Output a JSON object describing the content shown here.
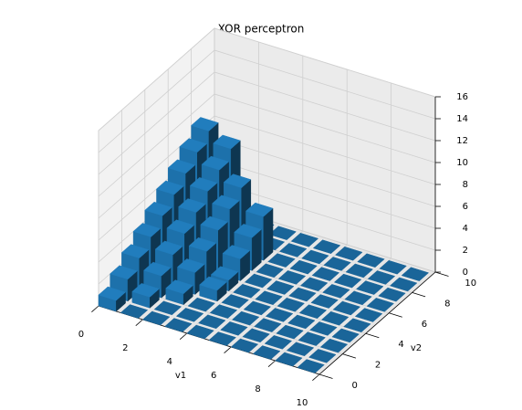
{
  "chart_data": {
    "type": "bar3d",
    "title": "XOR perceptron",
    "xlabel": "v1",
    "ylabel": "v2",
    "x": [
      0,
      1,
      2,
      3,
      4,
      5,
      6,
      7,
      8,
      9
    ],
    "y": [
      0,
      1,
      2,
      3,
      4,
      5,
      6,
      7,
      8,
      9
    ],
    "values": [
      [
        1,
        2,
        3,
        4,
        5,
        6,
        7,
        8,
        9,
        0
      ],
      [
        0,
        1,
        2,
        3,
        4,
        5,
        6,
        7,
        8,
        0
      ],
      [
        0,
        0,
        1,
        2,
        3,
        4,
        5,
        6,
        0,
        0
      ],
      [
        0,
        0,
        0,
        1,
        1,
        2,
        3,
        4,
        0,
        0
      ],
      [
        0,
        0,
        0,
        0,
        0,
        0,
        0,
        0,
        0,
        0
      ],
      [
        0,
        0,
        0,
        0,
        0,
        0,
        0,
        0,
        0,
        0
      ],
      [
        0,
        0,
        0,
        0,
        0,
        0,
        0,
        0,
        0,
        0
      ],
      [
        0,
        0,
        0,
        0,
        0,
        0,
        0,
        0,
        0,
        0
      ],
      [
        0,
        0,
        0,
        0,
        0,
        0,
        0,
        0,
        0,
        0
      ],
      [
        0,
        0,
        0,
        0,
        0,
        0,
        0,
        0,
        0,
        0
      ]
    ],
    "color": "#1f77b4",
    "xlim": [
      0,
      10
    ],
    "ylim": [
      0,
      10
    ],
    "zlim": [
      0,
      16
    ],
    "xticks": [
      0,
      2,
      4,
      6,
      8,
      10
    ],
    "yticks": [
      0,
      2,
      4,
      6,
      8,
      10
    ],
    "zticks": [
      0,
      2,
      4,
      6,
      8,
      10,
      12,
      14,
      16
    ],
    "grid": true
  }
}
